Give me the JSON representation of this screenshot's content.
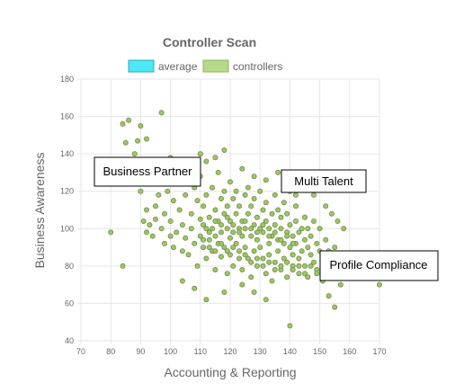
{
  "chart_data": {
    "type": "scatter",
    "title": "Controller Scan",
    "xlabel": "Accounting & Reporting",
    "ylabel": "Business Awareness",
    "xlim": [
      70,
      170
    ],
    "ylim": [
      40,
      180
    ],
    "xticks": [
      70,
      80,
      90,
      100,
      110,
      120,
      130,
      140,
      150,
      160,
      170
    ],
    "yticks": [
      40,
      60,
      80,
      100,
      120,
      140,
      160,
      180
    ],
    "grid": true,
    "legend_position": "top",
    "legend": [
      {
        "name": "average",
        "color": "#4de8f7",
        "border": "#2aa9b8"
      },
      {
        "name": "controllers",
        "color": "#b6d98a",
        "border": "#8fb35e"
      }
    ],
    "annotations": [
      "Business Partner",
      "Multi Talent",
      "Profile Compliance"
    ],
    "series": [
      {
        "name": "controllers",
        "color": "#9fc56b",
        "stroke": "#6f8f43",
        "points": [
          [
            80,
            98
          ],
          [
            84,
            80
          ],
          [
            84,
            156
          ],
          [
            86,
            158
          ],
          [
            85,
            146
          ],
          [
            89,
            147
          ],
          [
            90,
            155
          ],
          [
            88,
            140
          ],
          [
            92,
            148
          ],
          [
            97,
            162
          ],
          [
            88,
            130
          ],
          [
            90,
            120
          ],
          [
            91,
            104
          ],
          [
            92,
            110
          ],
          [
            92,
            98
          ],
          [
            93,
            102
          ],
          [
            94,
            96
          ],
          [
            95,
            105
          ],
          [
            95,
            112
          ],
          [
            96,
            118
          ],
          [
            97,
            100
          ],
          [
            98,
            92
          ],
          [
            98,
            108
          ],
          [
            99,
            120
          ],
          [
            100,
            96
          ],
          [
            100,
            104
          ],
          [
            101,
            90
          ],
          [
            101,
            115
          ],
          [
            102,
            98
          ],
          [
            102,
            124
          ],
          [
            103,
            110
          ],
          [
            104,
            88
          ],
          [
            104,
            102
          ],
          [
            105,
            118
          ],
          [
            105,
            95
          ],
          [
            106,
            130
          ],
          [
            106,
            86
          ],
          [
            107,
            108
          ],
          [
            107,
            100
          ],
          [
            108,
            122
          ],
          [
            108,
            92
          ],
          [
            109,
            80
          ],
          [
            109,
            115
          ],
          [
            110,
            105
          ],
          [
            110,
            96
          ],
          [
            110,
            128
          ],
          [
            111,
            112
          ],
          [
            111,
            90
          ],
          [
            112,
            100
          ],
          [
            112,
            84
          ],
          [
            112,
            118
          ],
          [
            113,
            94
          ],
          [
            113,
            106
          ],
          [
            114,
            122
          ],
          [
            114,
            88
          ],
          [
            114,
            100
          ],
          [
            115,
            110
          ],
          [
            115,
            78
          ],
          [
            115,
            96
          ],
          [
            116,
            130
          ],
          [
            116,
            104
          ],
          [
            116,
            92
          ],
          [
            117,
            116
          ],
          [
            117,
            85
          ],
          [
            117,
            98
          ],
          [
            118,
            108
          ],
          [
            118,
            120
          ],
          [
            118,
            90
          ],
          [
            119,
            100
          ],
          [
            119,
            76
          ],
          [
            119,
            112
          ],
          [
            120,
            95
          ],
          [
            120,
            104
          ],
          [
            120,
            125
          ],
          [
            120,
            86
          ],
          [
            121,
            98
          ],
          [
            121,
            116
          ],
          [
            121,
            80
          ],
          [
            122,
            108
          ],
          [
            122,
            92
          ],
          [
            122,
            120
          ],
          [
            123,
            100
          ],
          [
            123,
            88
          ],
          [
            123,
            112
          ],
          [
            124,
            96
          ],
          [
            124,
            104
          ],
          [
            124,
            78
          ],
          [
            125,
            118
          ],
          [
            125,
            90
          ],
          [
            125,
            100
          ],
          [
            126,
            108
          ],
          [
            126,
            84
          ],
          [
            126,
            122
          ],
          [
            127,
            96
          ],
          [
            127,
            112
          ],
          [
            127,
            74
          ],
          [
            128,
            102
          ],
          [
            128,
            88
          ],
          [
            128,
            116
          ],
          [
            129,
            94
          ],
          [
            129,
            106
          ],
          [
            129,
            80
          ],
          [
            130,
            100
          ],
          [
            130,
            120
          ],
          [
            130,
            90
          ],
          [
            131,
            110
          ],
          [
            131,
            84
          ],
          [
            131,
            98
          ],
          [
            132,
            104
          ],
          [
            132,
            76
          ],
          [
            132,
            114
          ],
          [
            133,
            92
          ],
          [
            133,
            100
          ],
          [
            133,
            86
          ],
          [
            134,
            108
          ],
          [
            134,
            96
          ],
          [
            134,
            72
          ],
          [
            135,
            102
          ],
          [
            135,
            118
          ],
          [
            135,
            82
          ],
          [
            136,
            94
          ],
          [
            136,
            110
          ],
          [
            136,
            88
          ],
          [
            137,
            100
          ],
          [
            137,
            78
          ],
          [
            137,
            106
          ],
          [
            138,
            92
          ],
          [
            138,
            114
          ],
          [
            138,
            84
          ],
          [
            139,
            98
          ],
          [
            139,
            74
          ],
          [
            139,
            108
          ],
          [
            140,
            90
          ],
          [
            140,
            102
          ],
          [
            140,
            120
          ],
          [
            141,
            86
          ],
          [
            141,
            96
          ],
          [
            141,
            80
          ],
          [
            142,
            104
          ],
          [
            142,
            92
          ],
          [
            142,
            112
          ],
          [
            143,
            84
          ],
          [
            143,
            98
          ],
          [
            143,
            76
          ],
          [
            144,
            100
          ],
          [
            144,
            88
          ],
          [
            145,
            94
          ],
          [
            145,
            106
          ],
          [
            145,
            80
          ],
          [
            146,
            90
          ],
          [
            146,
            100
          ],
          [
            146,
            74
          ],
          [
            147,
            86
          ],
          [
            147,
            96
          ],
          [
            148,
            82
          ],
          [
            148,
            104
          ],
          [
            149,
            92
          ],
          [
            149,
            78
          ],
          [
            150,
            88
          ],
          [
            150,
            100
          ],
          [
            151,
            84
          ],
          [
            151,
            72
          ],
          [
            152,
            94
          ],
          [
            152,
            80
          ],
          [
            153,
            88
          ],
          [
            153,
            64
          ],
          [
            154,
            76
          ],
          [
            155,
            58
          ],
          [
            155,
            90
          ],
          [
            156,
            82
          ],
          [
            157,
            70
          ],
          [
            158,
            86
          ],
          [
            159,
            78
          ],
          [
            160,
            84
          ],
          [
            162,
            74
          ],
          [
            165,
            80
          ],
          [
            170,
            70
          ],
          [
            170,
            87
          ],
          [
            140,
            48
          ],
          [
            132,
            62
          ],
          [
            128,
            66
          ],
          [
            124,
            70
          ],
          [
            118,
            66
          ],
          [
            112,
            62
          ],
          [
            108,
            68
          ],
          [
            104,
            72
          ],
          [
            110,
            140
          ],
          [
            112,
            136
          ],
          [
            115,
            138
          ],
          [
            118,
            142
          ],
          [
            106,
            136
          ],
          [
            100,
            138
          ],
          [
            98,
            132
          ],
          [
            95,
            128
          ],
          [
            102,
            130
          ],
          [
            124,
            132
          ],
          [
            128,
            128
          ],
          [
            132,
            126
          ],
          [
            136,
            130
          ],
          [
            140,
            128
          ],
          [
            144,
            124
          ],
          [
            148,
            118
          ],
          [
            150,
            126
          ],
          [
            152,
            112
          ],
          [
            154,
            108
          ],
          [
            156,
            104
          ],
          [
            158,
            100
          ],
          [
            146,
            122
          ],
          [
            142,
            118
          ],
          [
            138,
            124
          ],
          [
            111,
            102
          ],
          [
            113,
            98
          ],
          [
            115,
            104
          ],
          [
            117,
            102
          ],
          [
            119,
            106
          ],
          [
            121,
            102
          ],
          [
            123,
            98
          ],
          [
            125,
            104
          ],
          [
            127,
            100
          ],
          [
            129,
            98
          ],
          [
            131,
            102
          ],
          [
            133,
            96
          ],
          [
            135,
            98
          ],
          [
            137,
            94
          ],
          [
            139,
            96
          ],
          [
            141,
            92
          ],
          [
            111,
            94
          ],
          [
            113,
            90
          ],
          [
            115,
            88
          ],
          [
            117,
            92
          ],
          [
            119,
            88
          ],
          [
            121,
            90
          ],
          [
            123,
            84
          ],
          [
            125,
            86
          ],
          [
            127,
            82
          ],
          [
            129,
            84
          ],
          [
            131,
            80
          ],
          [
            133,
            82
          ],
          [
            135,
            78
          ],
          [
            137,
            80
          ],
          [
            139,
            82
          ],
          [
            141,
            78
          ],
          [
            143,
            80
          ],
          [
            145,
            76
          ],
          [
            147,
            80
          ],
          [
            149,
            76
          ]
        ]
      }
    ]
  }
}
